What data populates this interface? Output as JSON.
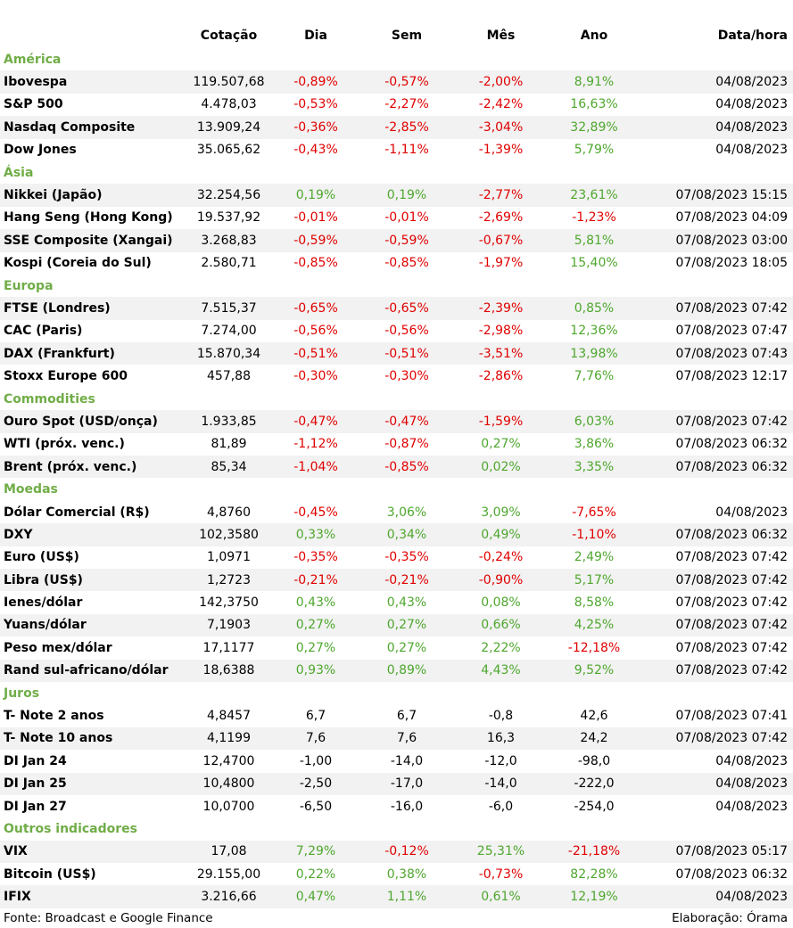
{
  "headers": {
    "cotacao": "Cotação",
    "dia": "Dia",
    "sem": "Sem",
    "mes": "Mês",
    "ano": "Ano",
    "data_hora": "Data/hora"
  },
  "colors": {
    "negative": "#e00000",
    "positive": "#4ea72e",
    "section": "#70ad47",
    "stripe": "#f2f2f2"
  },
  "sections": [
    {
      "title": "América",
      "rows": [
        {
          "name": "Ibovespa",
          "cotacao": "119.507,68",
          "dia": "-0,89%",
          "sem": "-0,57%",
          "mes": "-2,00%",
          "ano": "8,91%",
          "datahora": "04/08/2023"
        },
        {
          "name": "S&P 500",
          "cotacao": "4.478,03",
          "dia": "-0,53%",
          "sem": "-2,27%",
          "mes": "-2,42%",
          "ano": "16,63%",
          "datahora": "04/08/2023"
        },
        {
          "name": "Nasdaq Composite",
          "cotacao": "13.909,24",
          "dia": "-0,36%",
          "sem": "-2,85%",
          "mes": "-3,04%",
          "ano": "32,89%",
          "datahora": "04/08/2023"
        },
        {
          "name": "Dow Jones",
          "cotacao": "35.065,62",
          "dia": "-0,43%",
          "sem": "-1,11%",
          "mes": "-1,39%",
          "ano": "5,79%",
          "datahora": "04/08/2023"
        }
      ]
    },
    {
      "title": "Ásia",
      "rows": [
        {
          "name": "Nikkei (Japão)",
          "cotacao": "32.254,56",
          "dia": "0,19%",
          "sem": "0,19%",
          "mes": "-2,77%",
          "ano": "23,61%",
          "datahora": "07/08/2023 15:15"
        },
        {
          "name": "Hang Seng (Hong Kong)",
          "cotacao": "19.537,92",
          "dia": "-0,01%",
          "sem": "-0,01%",
          "mes": "-2,69%",
          "ano": "-1,23%",
          "datahora": "07/08/2023 04:09"
        },
        {
          "name": "SSE Composite (Xangai)",
          "cotacao": "3.268,83",
          "dia": "-0,59%",
          "sem": "-0,59%",
          "mes": "-0,67%",
          "ano": "5,81%",
          "datahora": "07/08/2023 03:00"
        },
        {
          "name": "Kospi (Coreia do Sul)",
          "cotacao": "2.580,71",
          "dia": "-0,85%",
          "sem": "-0,85%",
          "mes": "-1,97%",
          "ano": "15,40%",
          "datahora": "07/08/2023 18:05"
        }
      ]
    },
    {
      "title": "Europa",
      "rows": [
        {
          "name": "FTSE (Londres)",
          "cotacao": "7.515,37",
          "dia": "-0,65%",
          "sem": "-0,65%",
          "mes": "-2,39%",
          "ano": "0,85%",
          "datahora": "07/08/2023 07:42"
        },
        {
          "name": "CAC (Paris)",
          "cotacao": "7.274,00",
          "dia": "-0,56%",
          "sem": "-0,56%",
          "mes": "-2,98%",
          "ano": "12,36%",
          "datahora": "07/08/2023 07:47"
        },
        {
          "name": "DAX (Frankfurt)",
          "cotacao": "15.870,34",
          "dia": "-0,51%",
          "sem": "-0,51%",
          "mes": "-3,51%",
          "ano": "13,98%",
          "datahora": "07/08/2023 07:43"
        },
        {
          "name": "Stoxx Europe 600",
          "cotacao": "457,88",
          "dia": "-0,30%",
          "sem": "-0,30%",
          "mes": "-2,86%",
          "ano": "7,76%",
          "datahora": "07/08/2023 12:17"
        }
      ]
    },
    {
      "title": "Commodities",
      "rows": [
        {
          "name": "Ouro Spot (USD/onça)",
          "cotacao": "1.933,85",
          "dia": "-0,47%",
          "sem": "-0,47%",
          "mes": "-1,59%",
          "ano": "6,03%",
          "datahora": "07/08/2023 07:42"
        },
        {
          "name": "WTI (próx. venc.)",
          "cotacao": "81,89",
          "dia": "-1,12%",
          "sem": "-0,87%",
          "mes": "0,27%",
          "ano": "3,86%",
          "datahora": "07/08/2023 06:32"
        },
        {
          "name": "Brent (próx. venc.)",
          "cotacao": "85,34",
          "dia": "-1,04%",
          "sem": "-0,85%",
          "mes": "0,02%",
          "ano": "3,35%",
          "datahora": "07/08/2023 06:32"
        }
      ]
    },
    {
      "title": "Moedas",
      "rows": [
        {
          "name": "Dólar Comercial (R$)",
          "cotacao": "4,8760",
          "dia": "-0,45%",
          "sem": "3,06%",
          "mes": "3,09%",
          "ano": "-7,65%",
          "datahora": "04/08/2023"
        },
        {
          "name": "DXY",
          "cotacao": "102,3580",
          "dia": "0,33%",
          "sem": "0,34%",
          "mes": "0,49%",
          "ano": "-1,10%",
          "datahora": "07/08/2023 06:32"
        },
        {
          "name": "Euro (US$)",
          "cotacao": "1,0971",
          "dia": "-0,35%",
          "sem": "-0,35%",
          "mes": "-0,24%",
          "ano": "2,49%",
          "datahora": "07/08/2023 07:42"
        },
        {
          "name": "Libra (US$)",
          "cotacao": "1,2723",
          "dia": "-0,21%",
          "sem": "-0,21%",
          "mes": "-0,90%",
          "ano": "5,17%",
          "datahora": "07/08/2023 07:42"
        },
        {
          "name": "Ienes/dólar",
          "cotacao": "142,3750",
          "dia": "0,43%",
          "sem": "0,43%",
          "mes": "0,08%",
          "ano": "8,58%",
          "datahora": "07/08/2023 07:42"
        },
        {
          "name": "Yuans/dólar",
          "cotacao": "7,1903",
          "dia": "0,27%",
          "sem": "0,27%",
          "mes": "0,66%",
          "ano": "4,25%",
          "datahora": "07/08/2023 07:42"
        },
        {
          "name": "Peso mex/dólar",
          "cotacao": "17,1177",
          "dia": "0,27%",
          "sem": "0,27%",
          "mes": "2,22%",
          "ano": "-12,18%",
          "datahora": "07/08/2023 07:42"
        },
        {
          "name": "Rand sul-africano/dólar",
          "cotacao": "18,6388",
          "dia": "0,93%",
          "sem": "0,89%",
          "mes": "4,43%",
          "ano": "9,52%",
          "datahora": "07/08/2023 07:42"
        }
      ]
    },
    {
      "title": "Juros",
      "plain": true,
      "rows": [
        {
          "name": "T- Note 2 anos",
          "cotacao": "4,8457",
          "dia": "6,7",
          "sem": "6,7",
          "mes": "-0,8",
          "ano": "42,6",
          "datahora": "07/08/2023 07:41"
        },
        {
          "name": "T- Note 10 anos",
          "cotacao": "4,1199",
          "dia": "7,6",
          "sem": "7,6",
          "mes": "16,3",
          "ano": "24,2",
          "datahora": "07/08/2023 07:42"
        },
        {
          "name": "DI Jan 24",
          "cotacao": "12,4700",
          "dia": "-1,00",
          "sem": "-14,0",
          "mes": "-12,0",
          "ano": "-98,0",
          "datahora": "04/08/2023"
        },
        {
          "name": "DI Jan 25",
          "cotacao": "10,4800",
          "dia": "-2,50",
          "sem": "-17,0",
          "mes": "-14,0",
          "ano": "-222,0",
          "datahora": "04/08/2023"
        },
        {
          "name": "DI Jan 27",
          "cotacao": "10,0700",
          "dia": "-6,50",
          "sem": "-16,0",
          "mes": "-6,0",
          "ano": "-254,0",
          "datahora": "04/08/2023"
        }
      ]
    },
    {
      "title": "Outros indicadores",
      "rows": [
        {
          "name": "VIX",
          "cotacao": "17,08",
          "dia": "7,29%",
          "sem": "-0,12%",
          "mes": "25,31%",
          "ano": "-21,18%",
          "datahora": "07/08/2023 05:17"
        },
        {
          "name": "Bitcoin (US$)",
          "cotacao": "29.155,00",
          "dia": "0,22%",
          "sem": "0,38%",
          "mes": "-0,73%",
          "ano": "82,28%",
          "datahora": "07/08/2023 06:32"
        },
        {
          "name": "IFIX",
          "cotacao": "3.216,66",
          "dia": "0,47%",
          "sem": "1,11%",
          "mes": "0,61%",
          "ano": "12,19%",
          "datahora": "04/08/2023"
        }
      ]
    }
  ],
  "footer": {
    "source": "Fonte: Broadcast e Google Finance",
    "elaboration": "Elaboração: Órama"
  }
}
